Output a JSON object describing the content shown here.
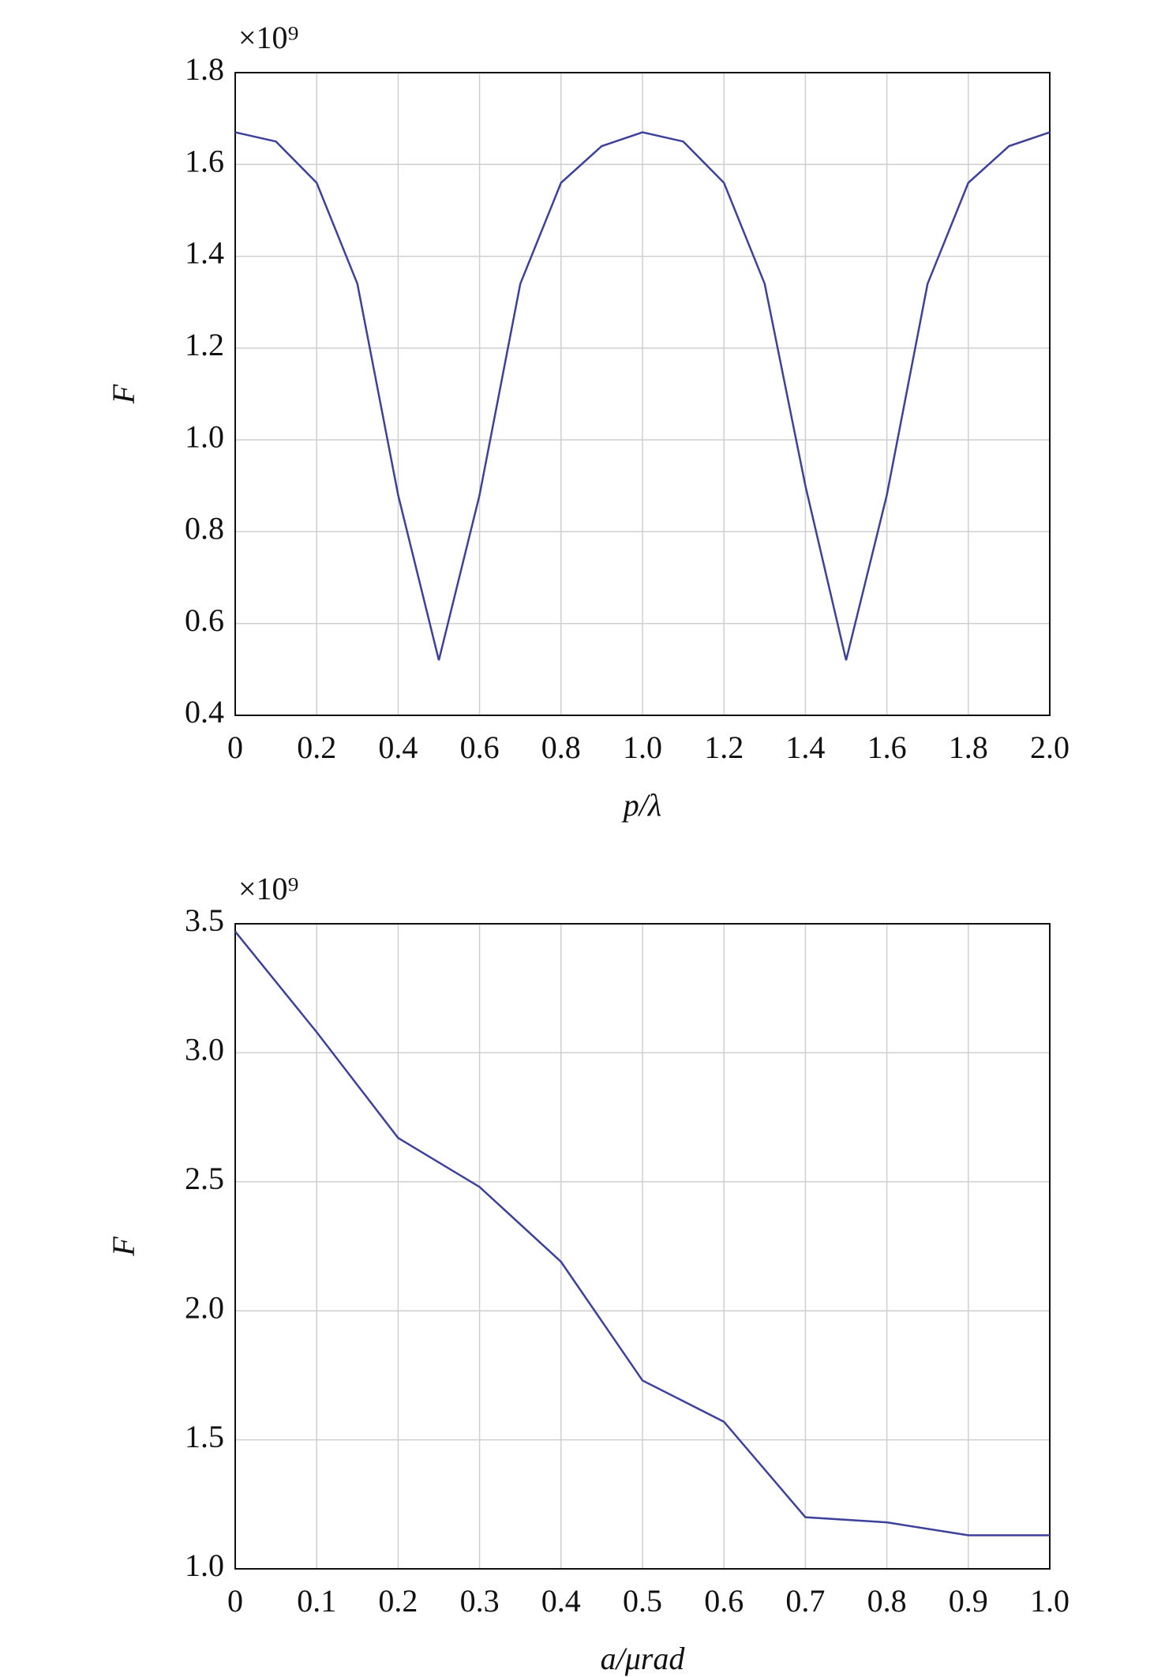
{
  "chart_data": [
    {
      "type": "line",
      "multiplier": "×10⁹",
      "y_label": "F",
      "x_label": "p/λ",
      "x": [
        0,
        0.1,
        0.2,
        0.3,
        0.4,
        0.5,
        0.6,
        0.7,
        0.8,
        0.9,
        1.0,
        1.1,
        1.2,
        1.3,
        1.4,
        1.5,
        1.6,
        1.7,
        1.8,
        1.9,
        2.0
      ],
      "series": [
        {
          "color": "#3d4199",
          "values": [
            1.67,
            1.65,
            1.56,
            1.34,
            0.88,
            0.52,
            0.88,
            1.34,
            1.56,
            1.64,
            1.67,
            1.65,
            1.56,
            1.34,
            0.9,
            0.52,
            0.88,
            1.34,
            1.56,
            1.64,
            1.67
          ]
        }
      ],
      "xlim": [
        0,
        2
      ],
      "ylim": [
        0.4,
        1.8
      ],
      "xticks": [
        0,
        0.2,
        0.4,
        0.6,
        0.8,
        {
          "value": 1,
          "label": "1.0"
        },
        1.2,
        1.4,
        1.6,
        1.8,
        {
          "value": 2,
          "label": "2.0"
        }
      ],
      "yticks": [
        0.4,
        0.6,
        0.8,
        {
          "value": 1,
          "label": "1.0"
        },
        1.2,
        1.4,
        1.6,
        1.8
      ],
      "grid": true
    },
    {
      "type": "line",
      "multiplier": "×10⁹",
      "y_label": "F",
      "x_label": "a/μrad",
      "x": [
        0,
        0.1,
        0.2,
        0.3,
        0.4,
        0.5,
        0.6,
        0.7,
        0.8,
        0.9,
        1.0
      ],
      "series": [
        {
          "color": "#3d4199",
          "values": [
            3.47,
            3.08,
            2.67,
            2.48,
            2.19,
            1.73,
            1.57,
            1.2,
            1.18,
            1.13,
            1.13
          ]
        }
      ],
      "xlim": [
        0,
        1
      ],
      "ylim": [
        1,
        3.5
      ],
      "xticks": [
        0,
        0.1,
        0.2,
        0.3,
        0.4,
        0.5,
        0.6,
        0.7,
        0.8,
        0.9,
        {
          "value": 1,
          "label": "1.0"
        }
      ],
      "yticks": [
        {
          "value": 1,
          "label": "1.0"
        },
        1.5,
        {
          "value": 2,
          "label": "2.0"
        },
        2.5,
        {
          "value": 3,
          "label": "3.0"
        },
        3.5
      ],
      "grid": true
    }
  ]
}
